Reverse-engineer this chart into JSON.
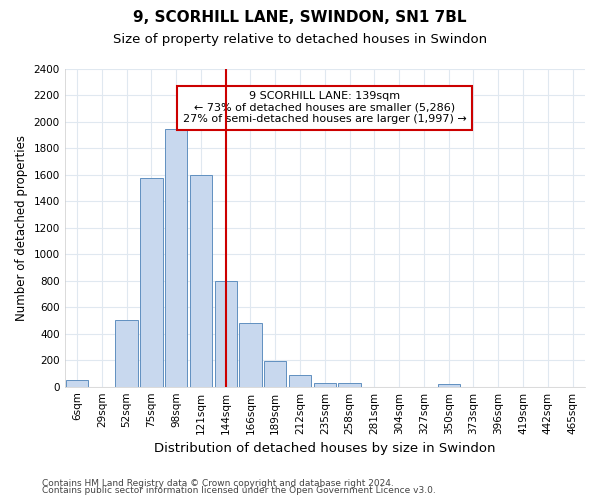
{
  "title": "9, SCORHILL LANE, SWINDON, SN1 7BL",
  "subtitle": "Size of property relative to detached houses in Swindon",
  "xlabel": "Distribution of detached houses by size in Swindon",
  "ylabel": "Number of detached properties",
  "categories": [
    "6sqm",
    "29sqm",
    "52sqm",
    "75sqm",
    "98sqm",
    "121sqm",
    "144sqm",
    "166sqm",
    "189sqm",
    "212sqm",
    "235sqm",
    "258sqm",
    "281sqm",
    "304sqm",
    "327sqm",
    "350sqm",
    "373sqm",
    "396sqm",
    "419sqm",
    "442sqm",
    "465sqm"
  ],
  "values": [
    50,
    0,
    500,
    1580,
    1950,
    1600,
    800,
    480,
    195,
    90,
    30,
    25,
    0,
    0,
    0,
    20,
    0,
    0,
    0,
    0,
    0
  ],
  "bar_color": "#c8d8ee",
  "bar_edge_color": "#6090c0",
  "vline_x": 6,
  "vline_color": "#cc0000",
  "annotation_text": "9 SCORHILL LANE: 139sqm\n← 73% of detached houses are smaller (5,286)\n27% of semi-detached houses are larger (1,997) →",
  "annotation_box_color": "#ffffff",
  "annotation_box_edge": "#cc0000",
  "ylim": [
    0,
    2400
  ],
  "yticks": [
    0,
    200,
    400,
    600,
    800,
    1000,
    1200,
    1400,
    1600,
    1800,
    2000,
    2200,
    2400
  ],
  "footer1": "Contains HM Land Registry data © Crown copyright and database right 2024.",
  "footer2": "Contains public sector information licensed under the Open Government Licence v3.0.",
  "bg_color": "#ffffff",
  "plot_bg_color": "#ffffff",
  "grid_color": "#e0e8f0",
  "title_fontsize": 11,
  "subtitle_fontsize": 9.5,
  "tick_fontsize": 7.5,
  "ylabel_fontsize": 8.5,
  "xlabel_fontsize": 9.5,
  "footer_fontsize": 6.5
}
